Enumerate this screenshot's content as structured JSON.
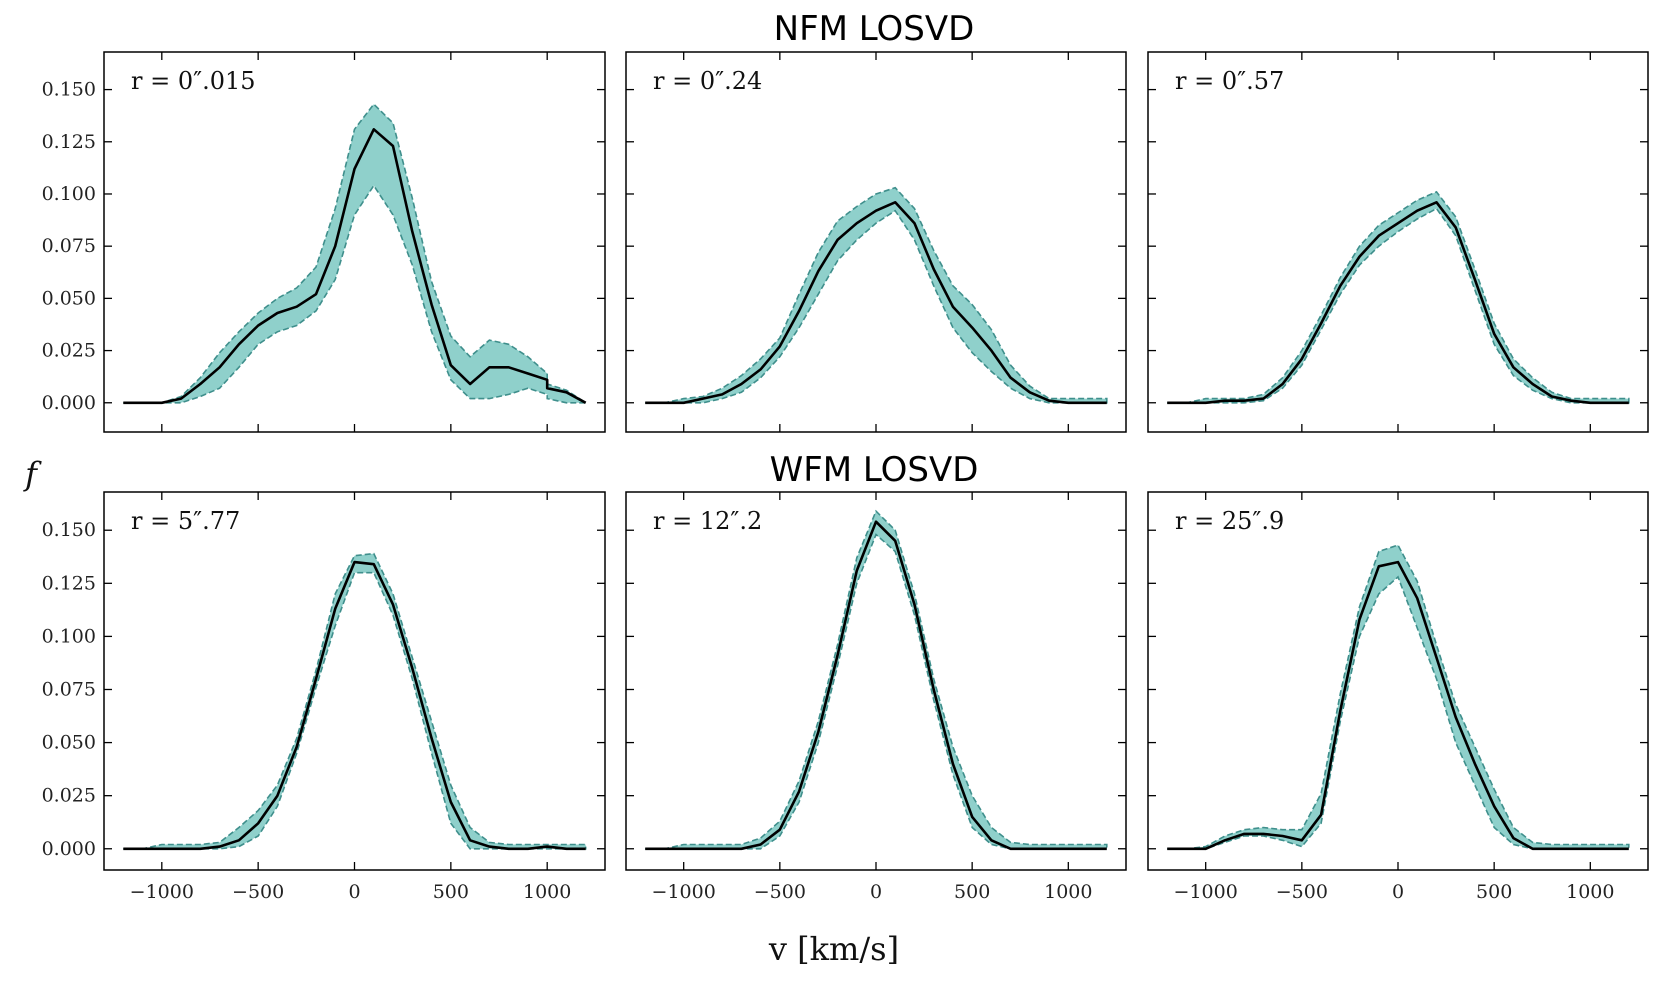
{
  "figure": {
    "row_titles": [
      "NFM LOSVD",
      "WFM LOSVD"
    ],
    "xlabel": "v [km/s]",
    "ylabel": "f"
  },
  "chart_data": [
    {
      "type": "area",
      "row": "NFM LOSVD",
      "label": "r = 0″.015",
      "xlim": [
        -1300,
        1300
      ],
      "ylim": [
        -0.014,
        0.168
      ],
      "x_ticks": [
        -1000,
        -500,
        0,
        500,
        1000
      ],
      "x_tick_labels": [
        "−1000",
        "−500",
        "0",
        "500",
        "1000"
      ],
      "y_ticks": [
        0.0,
        0.025,
        0.05,
        0.075,
        0.1,
        0.125,
        0.15
      ],
      "y_tick_labels": [
        "0.000",
        "0.025",
        "0.050",
        "0.075",
        "0.100",
        "0.125",
        "0.150"
      ],
      "show_x_tick_labels": false,
      "show_y_tick_labels": true,
      "series": [
        {
          "x": [
            -1200,
            -1100,
            -1000,
            -900,
            -800,
            -700,
            -600,
            -500,
            -400,
            -300,
            -200,
            -100,
            0,
            100,
            200,
            300,
            400,
            500,
            600,
            700,
            800,
            900,
            1000,
            1000,
            1100,
            1200
          ],
          "y_lower": [
            0,
            0,
            0,
            0,
            0.003,
            0.007,
            0.017,
            0.028,
            0.034,
            0.037,
            0.044,
            0.059,
            0.09,
            0.104,
            0.09,
            0.066,
            0.034,
            0.011,
            0.002,
            0.002,
            0.004,
            0.007,
            0.004,
            0.002,
            0,
            0
          ],
          "y_median": [
            0,
            0,
            0,
            0.002,
            0.009,
            0.017,
            0.028,
            0.037,
            0.043,
            0.046,
            0.052,
            0.075,
            0.112,
            0.131,
            0.123,
            0.082,
            0.047,
            0.018,
            0.009,
            0.017,
            0.017,
            0.014,
            0.011,
            0.007,
            0.005,
            0
          ],
          "y_upper": [
            0,
            0,
            0,
            0.003,
            0.012,
            0.024,
            0.034,
            0.043,
            0.05,
            0.055,
            0.065,
            0.093,
            0.131,
            0.143,
            0.134,
            0.098,
            0.058,
            0.032,
            0.022,
            0.03,
            0.028,
            0.022,
            0.014,
            0.009,
            0.006,
            0
          ]
        }
      ]
    },
    {
      "type": "area",
      "row": "NFM LOSVD",
      "label": "r = 0″.24",
      "xlim": [
        -1300,
        1300
      ],
      "ylim": [
        -0.014,
        0.168
      ],
      "x_ticks": [
        -1000,
        -500,
        0,
        500,
        1000
      ],
      "x_tick_labels": [
        "−1000",
        "−500",
        "0",
        "500",
        "1000"
      ],
      "y_ticks": [
        0.0,
        0.025,
        0.05,
        0.075,
        0.1,
        0.125,
        0.15
      ],
      "y_tick_labels": [
        "0.000",
        "0.025",
        "0.050",
        "0.075",
        "0.100",
        "0.125",
        "0.150"
      ],
      "show_x_tick_labels": false,
      "show_y_tick_labels": false,
      "series": [
        {
          "x": [
            -1200,
            -1100,
            -1000,
            -900,
            -800,
            -700,
            -600,
            -500,
            -400,
            -300,
            -200,
            -100,
            0,
            100,
            200,
            300,
            400,
            500,
            600,
            700,
            800,
            900,
            1000,
            1100,
            1200
          ],
          "y_lower": [
            0,
            0,
            0,
            0,
            0.002,
            0.005,
            0.012,
            0.022,
            0.036,
            0.052,
            0.068,
            0.078,
            0.086,
            0.092,
            0.078,
            0.056,
            0.036,
            0.024,
            0.015,
            0.007,
            0.002,
            0,
            0,
            0,
            0
          ],
          "y_median": [
            0,
            0,
            0,
            0.002,
            0.004,
            0.009,
            0.016,
            0.027,
            0.044,
            0.063,
            0.078,
            0.086,
            0.092,
            0.096,
            0.086,
            0.064,
            0.046,
            0.036,
            0.025,
            0.012,
            0.005,
            0.001,
            0,
            0,
            0
          ],
          "y_upper": [
            0,
            0,
            0.002,
            0.003,
            0.007,
            0.013,
            0.021,
            0.031,
            0.052,
            0.072,
            0.087,
            0.094,
            0.1,
            0.103,
            0.093,
            0.073,
            0.056,
            0.047,
            0.035,
            0.018,
            0.008,
            0.002,
            0.002,
            0.002,
            0.002
          ]
        }
      ]
    },
    {
      "type": "area",
      "row": "NFM LOSVD",
      "label": "r = 0″.57",
      "xlim": [
        -1300,
        1300
      ],
      "ylim": [
        -0.014,
        0.168
      ],
      "x_ticks": [
        -1000,
        -500,
        0,
        500,
        1000
      ],
      "x_tick_labels": [
        "−1000",
        "−500",
        "0",
        "500",
        "1000"
      ],
      "y_ticks": [
        0.0,
        0.025,
        0.05,
        0.075,
        0.1,
        0.125,
        0.15
      ],
      "y_tick_labels": [
        "0.000",
        "0.025",
        "0.050",
        "0.075",
        "0.100",
        "0.125",
        "0.150"
      ],
      "show_x_tick_labels": false,
      "show_y_tick_labels": false,
      "series": [
        {
          "x": [
            -1200,
            -1100,
            -1000,
            -900,
            -800,
            -700,
            -600,
            -500,
            -400,
            -300,
            -200,
            -100,
            0,
            100,
            200,
            300,
            400,
            500,
            600,
            700,
            800,
            900,
            1000,
            1100,
            1200
          ],
          "y_lower": [
            0,
            0,
            0,
            0,
            0,
            0.001,
            0.007,
            0.018,
            0.035,
            0.052,
            0.066,
            0.075,
            0.082,
            0.088,
            0.093,
            0.08,
            0.054,
            0.028,
            0.013,
            0.006,
            0.002,
            0,
            0,
            0,
            0
          ],
          "y_median": [
            0,
            0,
            0,
            0.001,
            0.001,
            0.002,
            0.009,
            0.021,
            0.038,
            0.056,
            0.07,
            0.08,
            0.086,
            0.092,
            0.096,
            0.084,
            0.059,
            0.033,
            0.017,
            0.009,
            0.003,
            0.001,
            0,
            0,
            0
          ],
          "y_upper": [
            0,
            0,
            0.002,
            0.002,
            0.002,
            0.004,
            0.012,
            0.025,
            0.042,
            0.06,
            0.075,
            0.085,
            0.091,
            0.097,
            0.101,
            0.089,
            0.064,
            0.038,
            0.021,
            0.012,
            0.005,
            0.002,
            0.002,
            0.002,
            0.002
          ]
        }
      ]
    },
    {
      "type": "area",
      "row": "WFM LOSVD",
      "label": "r = 5″.77",
      "xlim": [
        -1300,
        1300
      ],
      "ylim": [
        -0.01,
        0.168
      ],
      "x_ticks": [
        -1000,
        -500,
        0,
        500,
        1000
      ],
      "x_tick_labels": [
        "−1000",
        "−500",
        "0",
        "500",
        "1000"
      ],
      "y_ticks": [
        0.0,
        0.025,
        0.05,
        0.075,
        0.1,
        0.125,
        0.15
      ],
      "y_tick_labels": [
        "0.000",
        "0.025",
        "0.050",
        "0.075",
        "0.100",
        "0.125",
        "0.150"
      ],
      "show_x_tick_labels": true,
      "show_y_tick_labels": true,
      "series": [
        {
          "x": [
            -1200,
            -1100,
            -1000,
            -900,
            -800,
            -700,
            -600,
            -500,
            -400,
            -300,
            -200,
            -100,
            0,
            100,
            200,
            300,
            400,
            500,
            600,
            700,
            800,
            900,
            1000,
            1100,
            1200
          ],
          "y_lower": [
            0,
            0,
            0,
            0,
            0,
            0,
            0.001,
            0.006,
            0.02,
            0.045,
            0.076,
            0.105,
            0.13,
            0.13,
            0.11,
            0.08,
            0.045,
            0.012,
            0,
            0,
            0,
            0,
            0,
            0,
            0
          ],
          "y_median": [
            0,
            0,
            0,
            0,
            0,
            0.001,
            0.004,
            0.012,
            0.025,
            0.048,
            0.08,
            0.113,
            0.135,
            0.134,
            0.115,
            0.085,
            0.052,
            0.022,
            0.004,
            0.001,
            0,
            0,
            0.001,
            0,
            0
          ],
          "y_upper": [
            0,
            0,
            0.002,
            0.002,
            0.002,
            0.003,
            0.01,
            0.018,
            0.03,
            0.052,
            0.084,
            0.12,
            0.138,
            0.139,
            0.12,
            0.09,
            0.06,
            0.03,
            0.01,
            0.003,
            0.002,
            0.002,
            0.002,
            0.002,
            0.002
          ]
        }
      ]
    },
    {
      "type": "area",
      "row": "WFM LOSVD",
      "label": "r = 12″.2",
      "xlim": [
        -1300,
        1300
      ],
      "ylim": [
        -0.01,
        0.168
      ],
      "x_ticks": [
        -1000,
        -500,
        0,
        500,
        1000
      ],
      "x_tick_labels": [
        "−1000",
        "−500",
        "0",
        "500",
        "1000"
      ],
      "y_ticks": [
        0.0,
        0.025,
        0.05,
        0.075,
        0.1,
        0.125,
        0.15
      ],
      "y_tick_labels": [
        "0.000",
        "0.025",
        "0.050",
        "0.075",
        "0.100",
        "0.125",
        "0.150"
      ],
      "show_x_tick_labels": true,
      "show_y_tick_labels": false,
      "series": [
        {
          "x": [
            -1200,
            -1100,
            -1000,
            -900,
            -800,
            -700,
            -600,
            -500,
            -400,
            -300,
            -200,
            -100,
            0,
            100,
            200,
            300,
            400,
            500,
            600,
            700,
            800,
            900,
            1000,
            1100,
            1200
          ],
          "y_lower": [
            0,
            0,
            0,
            0,
            0,
            0,
            0,
            0.006,
            0.022,
            0.05,
            0.086,
            0.125,
            0.148,
            0.14,
            0.11,
            0.07,
            0.035,
            0.01,
            0.002,
            0,
            0,
            0,
            0,
            0,
            0
          ],
          "y_median": [
            0,
            0,
            0,
            0,
            0,
            0,
            0.002,
            0.009,
            0.027,
            0.055,
            0.091,
            0.131,
            0.154,
            0.145,
            0.115,
            0.075,
            0.04,
            0.015,
            0.004,
            0,
            0,
            0,
            0,
            0,
            0
          ],
          "y_upper": [
            0,
            0,
            0.002,
            0.002,
            0.002,
            0.002,
            0.005,
            0.013,
            0.032,
            0.06,
            0.096,
            0.137,
            0.159,
            0.15,
            0.12,
            0.08,
            0.048,
            0.025,
            0.01,
            0.003,
            0.002,
            0.002,
            0.002,
            0.002,
            0.002
          ]
        }
      ]
    },
    {
      "type": "area",
      "row": "WFM LOSVD",
      "label": "r = 25″.9",
      "xlim": [
        -1300,
        1300
      ],
      "ylim": [
        -0.01,
        0.168
      ],
      "x_ticks": [
        -1000,
        -500,
        0,
        500,
        1000
      ],
      "x_tick_labels": [
        "−1000",
        "−500",
        "0",
        "500",
        "1000"
      ],
      "y_ticks": [
        0.0,
        0.025,
        0.05,
        0.075,
        0.1,
        0.125,
        0.15
      ],
      "y_tick_labels": [
        "0.000",
        "0.025",
        "0.050",
        "0.075",
        "0.100",
        "0.125",
        "0.150"
      ],
      "show_x_tick_labels": true,
      "show_y_tick_labels": false,
      "series": [
        {
          "x": [
            -1200,
            -1100,
            -1000,
            -900,
            -800,
            -700,
            -600,
            -500,
            -400,
            -300,
            -200,
            -100,
            0,
            100,
            200,
            300,
            400,
            500,
            600,
            700,
            800,
            900,
            1000,
            1100,
            1200
          ],
          "y_lower": [
            0,
            0,
            0,
            0.003,
            0.006,
            0.006,
            0.004,
            0.001,
            0.012,
            0.06,
            0.1,
            0.12,
            0.128,
            0.104,
            0.08,
            0.05,
            0.03,
            0.01,
            0.002,
            0,
            0,
            0,
            0,
            0,
            0
          ],
          "y_median": [
            0,
            0,
            0,
            0.004,
            0.007,
            0.007,
            0.006,
            0.004,
            0.016,
            0.065,
            0.108,
            0.133,
            0.135,
            0.118,
            0.09,
            0.062,
            0.04,
            0.02,
            0.005,
            0,
            0,
            0,
            0,
            0,
            0
          ],
          "y_upper": [
            0,
            0,
            0.001,
            0.006,
            0.009,
            0.01,
            0.009,
            0.009,
            0.026,
            0.073,
            0.114,
            0.14,
            0.143,
            0.126,
            0.096,
            0.068,
            0.048,
            0.028,
            0.01,
            0.003,
            0.002,
            0.002,
            0.002,
            0.002,
            0.002
          ]
        }
      ]
    }
  ]
}
